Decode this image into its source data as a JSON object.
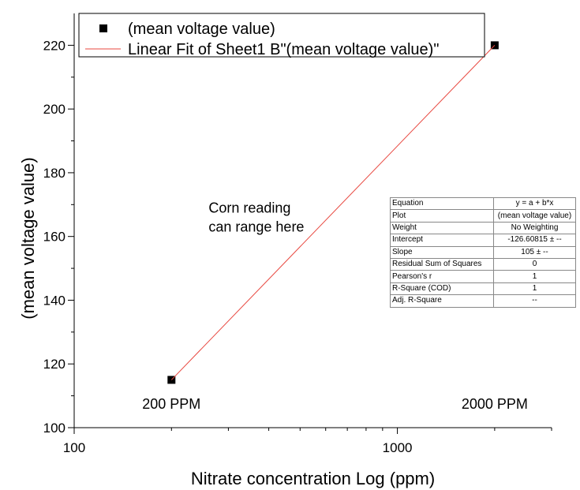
{
  "chart_data": {
    "type": "scatter",
    "xlabel": "Nitrate concentration Log (ppm)",
    "ylabel": "(mean voltage value)",
    "xscale": "log",
    "xlim": [
      100,
      3000
    ],
    "ylim": [
      100,
      230
    ],
    "xticks": [
      100,
      1000
    ],
    "xtick_labels": [
      "100",
      "1000"
    ],
    "yticks": [
      100,
      120,
      140,
      160,
      180,
      200,
      220
    ],
    "ytick_labels": [
      "100",
      "120",
      "140",
      "160",
      "180",
      "200",
      "220"
    ],
    "grid": false,
    "legend_position": "top-left",
    "series": [
      {
        "name": "(mean voltage value)",
        "kind": "scatter",
        "marker": "square",
        "color": "#000000",
        "x": [
          200,
          2000
        ],
        "y": [
          115,
          220
        ]
      },
      {
        "name": "Linear Fit of Sheet1 B\"(mean voltage value)\"",
        "kind": "line",
        "color": "#e8473f",
        "x": [
          200,
          2000
        ],
        "y": [
          115,
          220
        ]
      }
    ],
    "annotations": [
      {
        "text": "Corn reading",
        "x": 330,
        "y": 167.5
      },
      {
        "text": "can range here",
        "x": 330,
        "y": 161.5
      },
      {
        "text": "200 PPM",
        "x": 200,
        "y": 106
      },
      {
        "text": "2000 PPM",
        "x": 2000,
        "y": 106
      }
    ],
    "fit_table": [
      [
        "Equation",
        "y = a + b*x"
      ],
      [
        "Plot",
        "(mean voltage value)"
      ],
      [
        "Weight",
        "No Weighting"
      ],
      [
        "Intercept",
        "-126.60815 ± --"
      ],
      [
        "Slope",
        "105 ± --"
      ],
      [
        "Residual Sum of Squares",
        "0"
      ],
      [
        "Pearson's r",
        "1"
      ],
      [
        "R-Square (COD)",
        "1"
      ],
      [
        "Adj. R-Square",
        "--"
      ]
    ]
  }
}
